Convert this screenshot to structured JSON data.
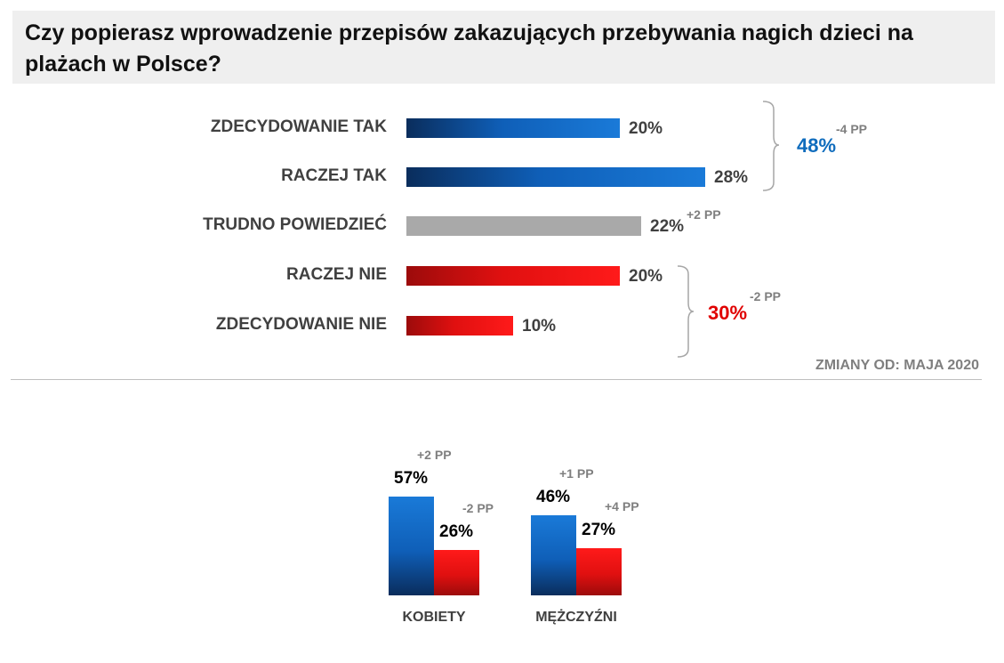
{
  "title": "Czy popierasz wprowadzenie przepisów zakazujących przebywania nagich dzieci na plażach w Polsce?",
  "note": "ZMIANY OD: MAJA 2020",
  "colors": {
    "support": "#0f5fb8",
    "neutral": "#a9a9a9",
    "oppose": "#e01010",
    "muted": "#7f7f7f"
  },
  "chart_data": [
    {
      "type": "bar",
      "orientation": "horizontal",
      "title": "Czy popierasz wprowadzenie przepisów zakazujących przebywania nagich dzieci na plażach w Polsce?",
      "categories": [
        "ZDECYDOWANIE TAK",
        "RACZEJ TAK",
        "TRUDNO POWIEDZIEĆ",
        "RACZEJ NIE",
        "ZDECYDOWANIE NIE"
      ],
      "values": [
        20,
        28,
        22,
        20,
        10
      ],
      "value_labels": [
        "20%",
        "28%",
        "22%",
        "20%",
        "10%"
      ],
      "colors": [
        "blue",
        "blue",
        "gray",
        "red",
        "red"
      ],
      "changes": [
        "",
        "",
        "+2 PP",
        "",
        ""
      ],
      "totals": [
        {
          "value": 48,
          "label": "48%",
          "change": "-4 PP",
          "color": "#0f6cbd"
        },
        {
          "value": 30,
          "label": "30%",
          "change": "-2 PP",
          "color": "#e00000"
        }
      ],
      "xlim": [
        0,
        50
      ]
    },
    {
      "type": "bar",
      "orientation": "vertical",
      "categories": [
        "KOBIETY",
        "MĘŻCZYŹNI"
      ],
      "series": [
        {
          "values": [
            57,
            46
          ],
          "value_labels": [
            "57%",
            "46%"
          ],
          "changes": [
            "+2 PP",
            "+1 PP"
          ],
          "color": "blue"
        },
        {
          "values": [
            26,
            27
          ],
          "value_labels": [
            "26%",
            "27%"
          ],
          "changes": [
            "-2 PP",
            "+4 PP"
          ],
          "color": "red"
        }
      ],
      "ylim": [
        0,
        60
      ]
    }
  ]
}
